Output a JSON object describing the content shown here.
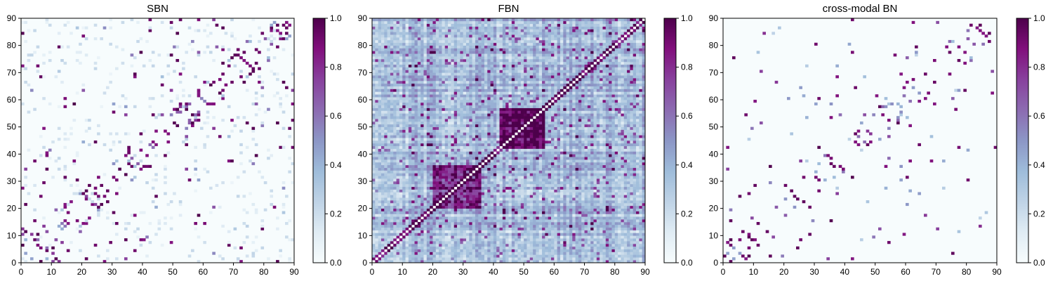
{
  "chart_data": [
    {
      "type": "heatmap",
      "title": "SBN",
      "xlim": [
        0,
        90
      ],
      "ylim": [
        0,
        90
      ],
      "xticks": [
        0,
        10,
        20,
        30,
        40,
        50,
        60,
        70,
        80,
        90
      ],
      "yticks": [
        0,
        10,
        20,
        30,
        40,
        50,
        60,
        70,
        80,
        90
      ],
      "colorbar": {
        "ticks": [
          0.0,
          0.2,
          0.4,
          0.6,
          0.8,
          1.0
        ],
        "range": [
          0,
          1
        ],
        "colormap": "BuPu"
      },
      "pattern": "sparse",
      "seed": 11
    },
    {
      "type": "heatmap",
      "title": "FBN",
      "xlim": [
        0,
        90
      ],
      "ylim": [
        0,
        90
      ],
      "xticks": [
        0,
        10,
        20,
        30,
        40,
        50,
        60,
        70,
        80,
        90
      ],
      "yticks": [
        0,
        10,
        20,
        30,
        40,
        50,
        60,
        70,
        80,
        90
      ],
      "colorbar": {
        "ticks": [
          0.0,
          0.2,
          0.4,
          0.6,
          0.8,
          1.0
        ],
        "range": [
          0,
          1
        ],
        "colormap": "BuPu"
      },
      "pattern": "dense",
      "seed": 29
    },
    {
      "type": "heatmap",
      "title": "cross-modal BN",
      "xlim": [
        0,
        90
      ],
      "ylim": [
        0,
        90
      ],
      "xticks": [
        0,
        10,
        20,
        30,
        40,
        50,
        60,
        70,
        80,
        90
      ],
      "yticks": [
        0,
        10,
        20,
        30,
        40,
        50,
        60,
        70,
        80,
        90
      ],
      "colorbar": {
        "ticks": [
          0.0,
          0.2,
          0.4,
          0.6,
          0.8,
          1.0
        ],
        "range": [
          0,
          1
        ],
        "colormap": "BuPu"
      },
      "pattern": "sparse-binary",
      "seed": 11
    }
  ]
}
